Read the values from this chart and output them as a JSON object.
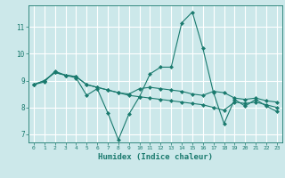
{
  "title": "",
  "xlabel": "Humidex (Indice chaleur)",
  "ylabel": "",
  "background_color": "#cce8ea",
  "grid_color": "#ffffff",
  "line_color": "#1a7a6e",
  "xlim": [
    -0.5,
    23.5
  ],
  "ylim": [
    6.7,
    11.8
  ],
  "xticks": [
    0,
    1,
    2,
    3,
    4,
    5,
    6,
    7,
    8,
    9,
    10,
    11,
    12,
    13,
    14,
    15,
    16,
    17,
    18,
    19,
    20,
    21,
    22,
    23
  ],
  "yticks": [
    7,
    8,
    9,
    10,
    11
  ],
  "series": [
    [
      8.85,
      8.95,
      9.35,
      9.2,
      9.1,
      8.45,
      8.7,
      7.8,
      6.8,
      7.75,
      8.4,
      9.25,
      9.5,
      9.5,
      11.15,
      11.55,
      10.2,
      8.55,
      7.4,
      8.3,
      8.05,
      8.3,
      8.05,
      7.85
    ],
    [
      8.85,
      9.0,
      9.3,
      9.2,
      9.15,
      8.85,
      8.75,
      8.65,
      8.55,
      8.45,
      8.4,
      8.35,
      8.3,
      8.25,
      8.2,
      8.15,
      8.1,
      8.0,
      7.9,
      8.2,
      8.15,
      8.2,
      8.1,
      8.0
    ],
    [
      8.85,
      9.0,
      9.3,
      9.2,
      9.15,
      8.85,
      8.75,
      8.65,
      8.55,
      8.5,
      8.7,
      8.75,
      8.7,
      8.65,
      8.6,
      8.5,
      8.45,
      8.6,
      8.55,
      8.35,
      8.3,
      8.35,
      8.25,
      8.2
    ]
  ]
}
